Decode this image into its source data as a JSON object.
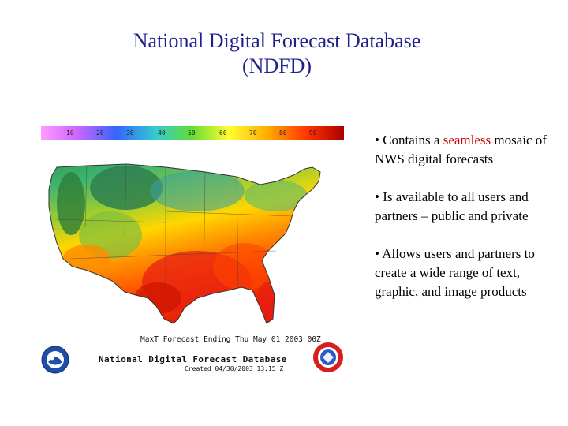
{
  "slide": {
    "title_line1": "National Digital Forecast Database",
    "title_line2": "(NDFD)"
  },
  "map": {
    "scale_labels": [
      "10",
      "20",
      "30",
      "40",
      "50",
      "60",
      "70",
      "80",
      "90"
    ],
    "forecast_caption": "MaxT  Forecast Ending Thu May 01 2003 00Z",
    "database_caption": "National Digital Forecast Database",
    "created_caption": "Created 04/30/2003 13:15 Z",
    "colors": {
      "cold": "#2e8b3c",
      "cool": "#9acd32",
      "mild": "#ffd700",
      "warm": "#ff8c00",
      "hot": "#e83010"
    }
  },
  "logos": {
    "noaa_text": "NOAA",
    "nws_text": "National Weather Service"
  },
  "bullets": [
    {
      "prefix": "• Contains a ",
      "highlight": "seamless",
      "suffix": " mosaic of NWS digital forecasts"
    },
    {
      "prefix": "• Is available to all users and partners – public and private",
      "highlight": "",
      "suffix": ""
    },
    {
      "prefix": "• Allows users and partners to create a wide range of text, graphic, and image products",
      "highlight": "",
      "suffix": ""
    }
  ]
}
